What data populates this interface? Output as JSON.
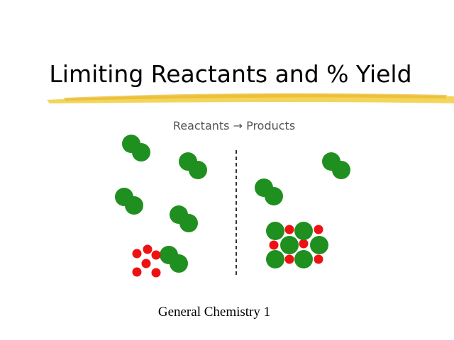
{
  "header": {
    "title": "Limiting Reactants and % Yield"
  },
  "figure": {
    "caption": "Reactants → Products"
  },
  "footer": {
    "text": "General Chemistry 1"
  }
}
